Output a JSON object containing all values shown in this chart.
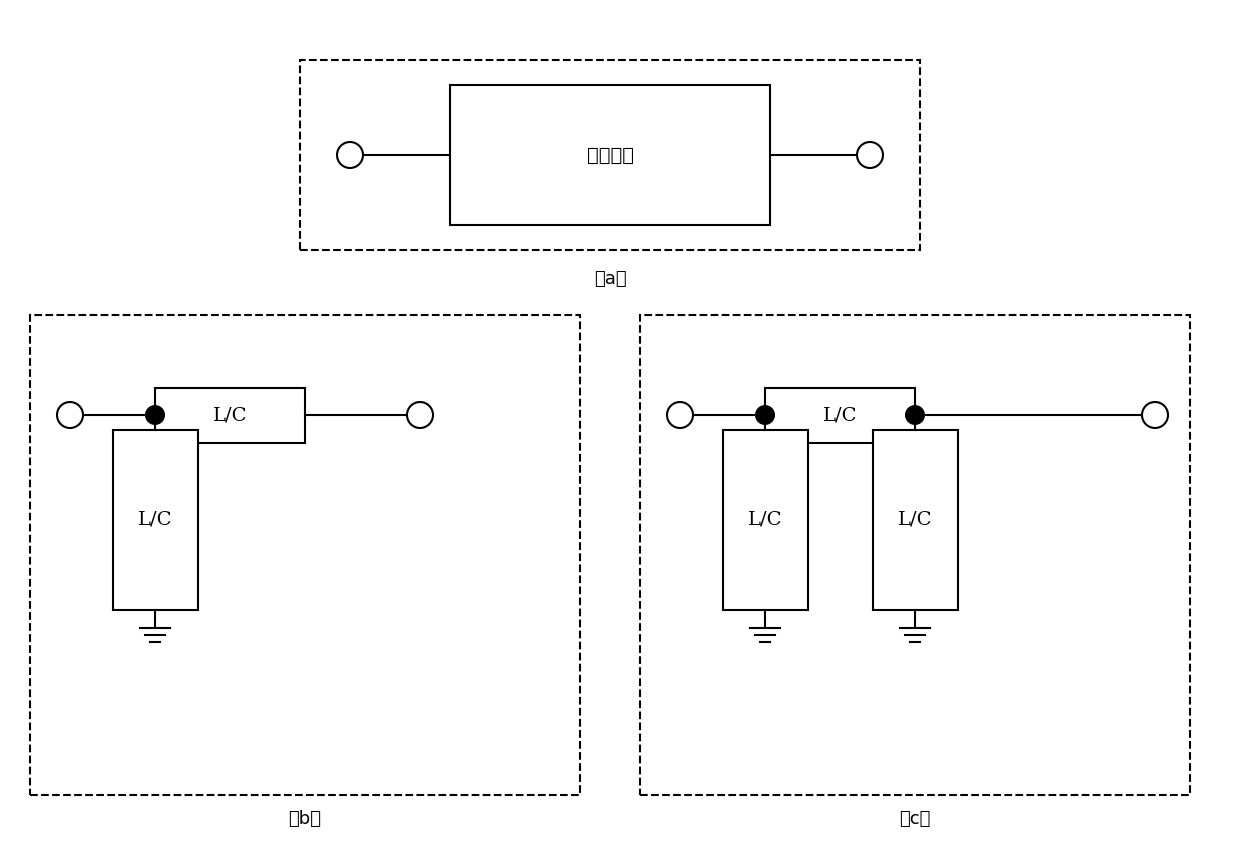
{
  "bg_color": "#ffffff",
  "line_color": "#000000",
  "title_a": "（a）",
  "title_b": "（b）",
  "title_c": "（c）",
  "label_matching": "匹配单元",
  "label_lc": "L/C",
  "font_size_label": 14,
  "font_size_caption": 13
}
